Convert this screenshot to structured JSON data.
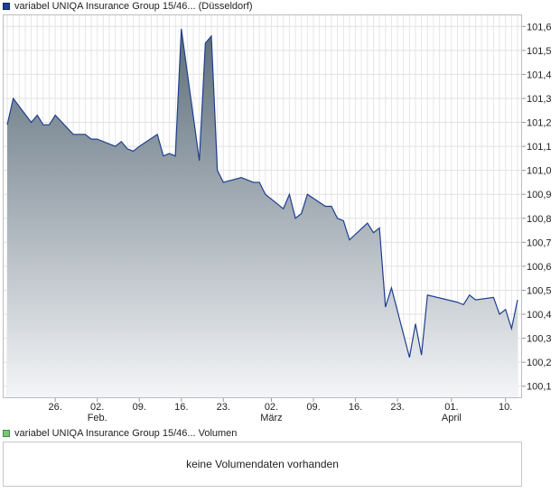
{
  "price_legend": {
    "label": "variabel UNIQA Insurance Group 15/46... (Düsseldorf)",
    "color": "#1f3f8f"
  },
  "volume_legend": {
    "label": "variabel UNIQA Insurance Group 15/46... Volumen",
    "color": "#7cc47c"
  },
  "volume_panel": {
    "message": "keine Volumendaten vorhanden"
  },
  "chart_data": {
    "type": "area",
    "title": "",
    "xlabel": "",
    "ylabel": "",
    "ylim": [
      100.05,
      101.65
    ],
    "y_ticks": [
      "100,1",
      "100,2",
      "100,3",
      "100,4",
      "100,5",
      "100,6",
      "100,7",
      "100,8",
      "100,9",
      "101,0",
      "101,1",
      "101,2",
      "101,3",
      "101,4",
      "101,5",
      "101,6"
    ],
    "x_ticks": [
      {
        "day": "26.",
        "month": ""
      },
      {
        "day": "02.",
        "month": "Feb."
      },
      {
        "day": "09.",
        "month": ""
      },
      {
        "day": "16.",
        "month": ""
      },
      {
        "day": "23.",
        "month": ""
      },
      {
        "day": "02.",
        "month": "März"
      },
      {
        "day": "09.",
        "month": ""
      },
      {
        "day": "16.",
        "month": ""
      },
      {
        "day": "23.",
        "month": ""
      },
      {
        "day": "01.",
        "month": "April"
      },
      {
        "day": "10.",
        "month": ""
      }
    ],
    "x_tick_dates": [
      "2024-01-26",
      "2024-02-02",
      "2024-02-09",
      "2024-02-16",
      "2024-02-23",
      "2024-03-02",
      "2024-03-09",
      "2024-03-16",
      "2024-03-23",
      "2024-04-01",
      "2024-04-10"
    ],
    "grid": true,
    "y_axis_side": "right",
    "line_color": "#1f3f8f",
    "fill_top_color": "#5c6d7a",
    "fill_bottom_color": "#f4f5f7",
    "series": [
      {
        "points": [
          [
            "2024-01-18",
            101.19
          ],
          [
            "2024-01-19",
            101.3
          ],
          [
            "2024-01-22",
            101.2
          ],
          [
            "2024-01-23",
            101.23
          ],
          [
            "2024-01-24",
            101.19
          ],
          [
            "2024-01-25",
            101.19
          ],
          [
            "2024-01-26",
            101.23
          ],
          [
            "2024-01-29",
            101.15
          ],
          [
            "2024-01-30",
            101.15
          ],
          [
            "2024-01-31",
            101.15
          ],
          [
            "2024-02-01",
            101.13
          ],
          [
            "2024-02-02",
            101.13
          ],
          [
            "2024-02-05",
            101.1
          ],
          [
            "2024-02-06",
            101.12
          ],
          [
            "2024-02-07",
            101.09
          ],
          [
            "2024-02-08",
            101.08
          ],
          [
            "2024-02-09",
            101.1
          ],
          [
            "2024-02-12",
            101.15
          ],
          [
            "2024-02-13",
            101.06
          ],
          [
            "2024-02-14",
            101.07
          ],
          [
            "2024-02-15",
            101.06
          ],
          [
            "2024-02-16",
            101.59
          ],
          [
            "2024-02-19",
            101.04
          ],
          [
            "2024-02-20",
            101.53
          ],
          [
            "2024-02-21",
            101.56
          ],
          [
            "2024-02-22",
            101.0
          ],
          [
            "2024-02-23",
            100.95
          ],
          [
            "2024-02-26",
            100.97
          ],
          [
            "2024-02-27",
            100.96
          ],
          [
            "2024-02-28",
            100.95
          ],
          [
            "2024-02-29",
            100.95
          ],
          [
            "2024-03-01",
            100.9
          ],
          [
            "2024-03-04",
            100.84
          ],
          [
            "2024-03-05",
            100.9
          ],
          [
            "2024-03-06",
            100.8
          ],
          [
            "2024-03-07",
            100.82
          ],
          [
            "2024-03-08",
            100.9
          ],
          [
            "2024-03-11",
            100.85
          ],
          [
            "2024-03-12",
            100.85
          ],
          [
            "2024-03-13",
            100.8
          ],
          [
            "2024-03-14",
            100.79
          ],
          [
            "2024-03-15",
            100.71
          ],
          [
            "2024-03-18",
            100.78
          ],
          [
            "2024-03-19",
            100.74
          ],
          [
            "2024-03-20",
            100.76
          ],
          [
            "2024-03-21",
            100.43
          ],
          [
            "2024-03-22",
            100.51
          ],
          [
            "2024-03-25",
            100.22
          ],
          [
            "2024-03-26",
            100.36
          ],
          [
            "2024-03-27",
            100.23
          ],
          [
            "2024-03-28",
            100.48
          ],
          [
            "2024-04-02",
            100.45
          ],
          [
            "2024-04-03",
            100.44
          ],
          [
            "2024-04-04",
            100.48
          ],
          [
            "2024-04-05",
            100.46
          ],
          [
            "2024-04-08",
            100.47
          ],
          [
            "2024-04-09",
            100.4
          ],
          [
            "2024-04-10",
            100.42
          ],
          [
            "2024-04-11",
            100.34
          ],
          [
            "2024-04-12",
            100.46
          ]
        ]
      }
    ]
  }
}
